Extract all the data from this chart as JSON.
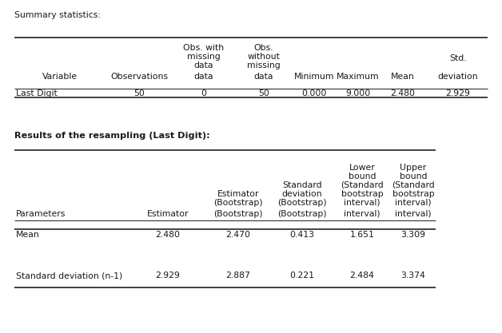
{
  "title1": "Summary statistics:",
  "title2": "Results of the resampling (Last Digit):",
  "sum_header_row1": [
    "",
    "",
    "Obs. with",
    "Obs.",
    "",
    "",
    "",
    "Std."
  ],
  "sum_header_row2": [
    "",
    "",
    "missing",
    "without",
    "",
    "",
    "",
    ""
  ],
  "sum_header_row3": [
    "",
    "",
    "data",
    "missing",
    "",
    "",
    "",
    "deviation"
  ],
  "sum_header_row4": [
    "Variable",
    "Observations",
    "",
    "data",
    "Minimum",
    "Maximum",
    "Mean",
    ""
  ],
  "summary_data": [
    [
      "Last Digit",
      "50",
      "0",
      "50",
      "0.000",
      "9.000",
      "2.480",
      "2.929"
    ]
  ],
  "res_hdr_r1": [
    "",
    "",
    "",
    "Standard",
    "Lower",
    "Upper"
  ],
  "res_hdr_r2": [
    "",
    "",
    "Estimator",
    "deviation",
    "bound",
    "bound"
  ],
  "res_hdr_r3": [
    "",
    "",
    "",
    "",
    "(Standard",
    "(Standard"
  ],
  "res_hdr_r4": [
    "",
    "",
    "",
    "",
    "bootstrap",
    "bootstrap"
  ],
  "res_hdr_r5": [
    "Parameters",
    "Estimator",
    "(Bootstrap)",
    "(Bootstrap)",
    "interval)",
    "interval)"
  ],
  "resample_data": [
    [
      "Mean",
      "2.480",
      "2.470",
      "0.413",
      "1.651",
      "3.309"
    ],
    [
      "Standard deviation (n-1)",
      "2.929",
      "2.887",
      "0.221",
      "2.484",
      "3.374"
    ]
  ],
  "bg_color": "#ffffff",
  "text_color": "#1a1a1a",
  "line_color": "#333333",
  "font_size": 7.8,
  "bold_size": 8.5,
  "fig_w": 6.28,
  "fig_h": 4.17,
  "dpi": 100
}
